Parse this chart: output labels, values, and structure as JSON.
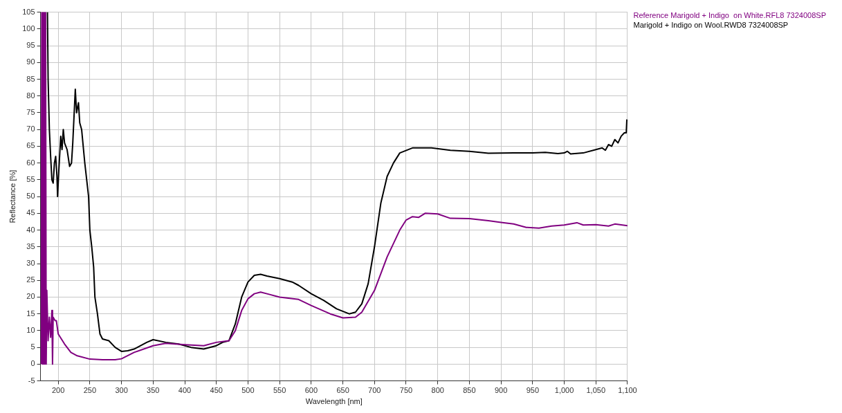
{
  "chart_data": {
    "type": "line",
    "xlabel": "Wavelength [nm]",
    "ylabel": "Reflectance [%]",
    "xlim": [
      172,
      1100
    ],
    "xticks": [
      200,
      250,
      300,
      350,
      400,
      450,
      500,
      550,
      600,
      650,
      700,
      750,
      800,
      850,
      900,
      950,
      {
        "value": 1000,
        "label": "1,000"
      },
      {
        "value": 1050,
        "label": "1,050"
      },
      {
        "value": 1100,
        "label": "1,100"
      }
    ],
    "ylim": [
      -5,
      105
    ],
    "yticks": [
      -5,
      0,
      5,
      10,
      15,
      20,
      25,
      30,
      35,
      40,
      45,
      50,
      55,
      60,
      65,
      70,
      75,
      80,
      85,
      90,
      95,
      100,
      105
    ],
    "grid": true,
    "legend": "top right",
    "marker": "none",
    "line_style": "solid",
    "series": [
      {
        "name": "Reference Marigold + Indigo  on White.RFL8 7324008SP",
        "color": "#800080",
        "x": [
          173,
          174,
          175,
          176,
          177,
          178,
          179,
          180,
          181,
          182,
          184,
          186,
          188,
          190,
          191,
          192,
          195,
          197,
          200,
          210,
          220,
          230,
          250,
          270,
          290,
          300,
          320,
          350,
          370,
          400,
          430,
          450,
          470,
          480,
          490,
          500,
          510,
          520,
          530,
          550,
          580,
          600,
          630,
          650,
          670,
          680,
          700,
          720,
          740,
          750,
          760,
          770,
          780,
          800,
          820,
          850,
          880,
          900,
          920,
          940,
          960,
          980,
          1000,
          1020,
          1030,
          1050,
          1070,
          1080,
          1100
        ],
        "values": [
          0,
          105,
          0,
          105,
          0,
          105,
          0,
          105,
          0,
          22,
          7,
          14,
          8,
          16,
          0,
          14,
          13,
          13,
          9,
          6,
          3.5,
          2.5,
          1.5,
          1.3,
          1.3,
          1.6,
          3.5,
          5.5,
          6.2,
          5.8,
          5.5,
          6.5,
          7,
          10,
          16,
          19.5,
          21,
          21.5,
          21,
          20,
          19.3,
          17.5,
          15,
          13.8,
          14,
          15.5,
          22,
          32,
          40,
          43,
          44,
          43.8,
          45,
          44.8,
          43.5,
          43.4,
          42.8,
          42.3,
          41.8,
          40.8,
          40.6,
          41.2,
          41.5,
          42.2,
          41.5,
          41.6,
          41.2,
          41.8,
          41.3
        ]
      },
      {
        "name": "Marigold + Indigo on Wool.RWD8 7324008SP",
        "color": "#000000",
        "x": [
          183,
          184,
          186,
          188,
          190,
          192,
          194,
          196,
          198,
          199,
          201,
          204,
          206,
          208,
          210,
          214,
          218,
          221,
          223,
          226,
          227,
          229,
          232,
          234,
          237,
          242,
          245,
          248,
          250,
          253,
          256,
          258,
          262,
          266,
          270,
          280,
          290,
          300,
          310,
          320,
          340,
          350,
          370,
          390,
          410,
          430,
          450,
          460,
          470,
          480,
          490,
          500,
          510,
          520,
          530,
          550,
          570,
          580,
          600,
          620,
          640,
          660,
          670,
          680,
          690,
          700,
          710,
          720,
          730,
          740,
          760,
          790,
          820,
          850,
          880,
          920,
          950,
          970,
          990,
          1000,
          1005,
          1010,
          1030,
          1050,
          1060,
          1065,
          1070,
          1075,
          1080,
          1085,
          1090,
          1095,
          1098,
          1099,
          1100
        ],
        "values": [
          105,
          85,
          70,
          62,
          55,
          54,
          60,
          62,
          56,
          50,
          58,
          68,
          64,
          70,
          66,
          64,
          59,
          60,
          66,
          78,
          82,
          75,
          78,
          72,
          70,
          60,
          55,
          50,
          40,
          35,
          29,
          20,
          15,
          9,
          7.5,
          7,
          5,
          3.8,
          4,
          4.5,
          6.5,
          7.3,
          6.5,
          6,
          5,
          4.5,
          5.5,
          6.5,
          7,
          12,
          20,
          24.5,
          26.5,
          26.8,
          26.3,
          25.5,
          24.5,
          23.5,
          21,
          19,
          16.5,
          15,
          15.5,
          18,
          24,
          35,
          48,
          56,
          60,
          63,
          64.5,
          64.5,
          63.8,
          63.5,
          62.9,
          63,
          63,
          63.2,
          62.8,
          63,
          63.5,
          62.7,
          63,
          64,
          64.5,
          63.8,
          65.5,
          65,
          67,
          66,
          68,
          69,
          69,
          73,
          73
        ]
      }
    ]
  }
}
